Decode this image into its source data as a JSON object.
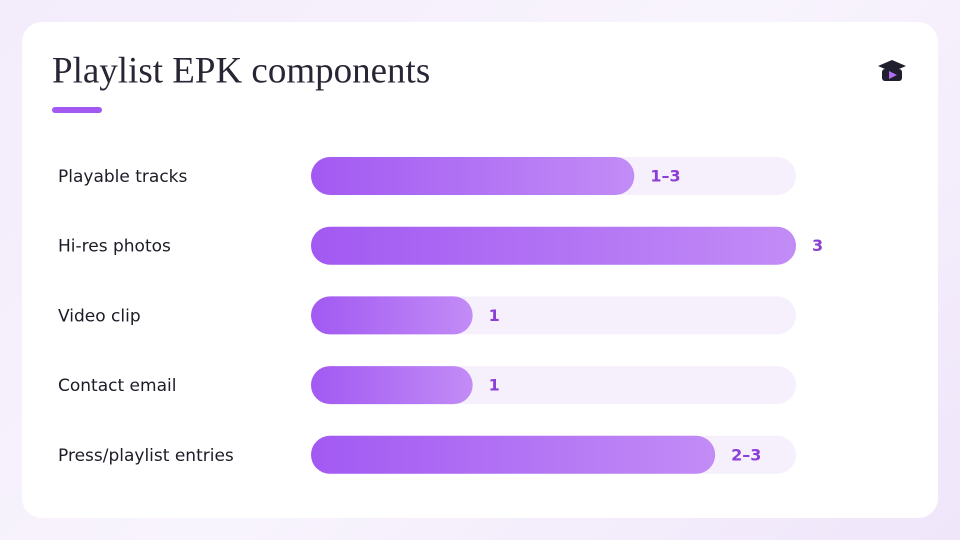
{
  "chart_data": {
    "type": "bar",
    "orientation": "horizontal",
    "title": "Playlist EPK components",
    "categories": [
      "Playable tracks",
      "Hi-res photos",
      "Video clip",
      "Contact email",
      "Press/playlist entries"
    ],
    "values": [
      2,
      3,
      1,
      1,
      2.5
    ],
    "value_labels": [
      "1–3",
      "3",
      "1",
      "1",
      "2–3"
    ],
    "xlim": [
      0,
      3
    ],
    "color": "#a259f2"
  }
}
